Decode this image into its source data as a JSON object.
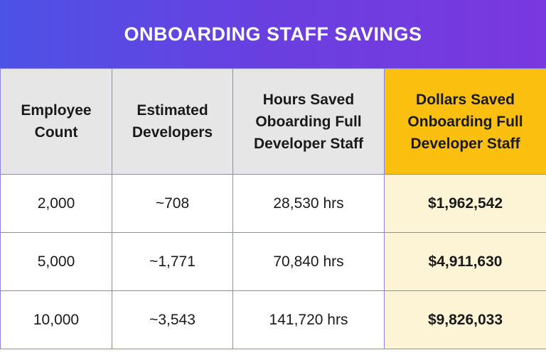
{
  "title": "ONBOARDING STAFF SAVINGS",
  "colors": {
    "banner_gradient_start": "#4d52e6",
    "banner_gradient_end": "#7a38df",
    "header_bg": "#e6e6e6",
    "highlight_header_bg": "#fbbf0f",
    "highlight_cell_bg": "#fdf4d6",
    "border": "#8a84e6"
  },
  "headers": [
    {
      "lines": [
        "Employee",
        "Count"
      ]
    },
    {
      "lines": [
        "Estimated",
        "Developers"
      ]
    },
    {
      "lines": [
        "Hours Saved",
        "Oboarding Full",
        "Developer Staff"
      ]
    },
    {
      "lines": [
        "Dollars Saved",
        "Onboarding Full",
        "Developer Staff"
      ]
    }
  ],
  "rows": [
    {
      "employee_count": "2,000",
      "estimated_developers": "~708",
      "hours_saved": "28,530 hrs",
      "dollars_saved": "$1,962,542"
    },
    {
      "employee_count": "5,000",
      "estimated_developers": "~1,771",
      "hours_saved": "70,840 hrs",
      "dollars_saved": "$4,911,630"
    },
    {
      "employee_count": "10,000",
      "estimated_developers": "~3,543",
      "hours_saved": "141,720 hrs",
      "dollars_saved": "$9,826,033"
    }
  ]
}
